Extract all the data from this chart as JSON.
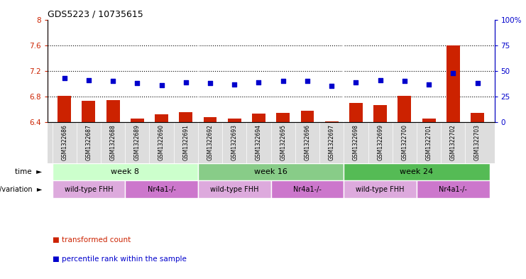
{
  "title": "GDS5223 / 10735615",
  "samples": [
    "GSM1322686",
    "GSM1322687",
    "GSM1322688",
    "GSM1322689",
    "GSM1322690",
    "GSM1322691",
    "GSM1322692",
    "GSM1322693",
    "GSM1322694",
    "GSM1322695",
    "GSM1322696",
    "GSM1322697",
    "GSM1322698",
    "GSM1322699",
    "GSM1322700",
    "GSM1322701",
    "GSM1322702",
    "GSM1322703"
  ],
  "red_values": [
    6.81,
    6.73,
    6.74,
    6.46,
    6.52,
    6.56,
    6.48,
    6.46,
    6.53,
    6.55,
    6.58,
    6.41,
    6.7,
    6.67,
    6.81,
    6.46,
    7.6,
    6.55
  ],
  "blue_values": [
    43,
    41,
    40,
    38,
    36,
    39,
    38,
    37,
    39,
    40,
    40,
    35,
    39,
    41,
    40,
    37,
    48,
    38
  ],
  "ylim_left": [
    6.4,
    8.0
  ],
  "ylim_right": [
    0,
    100
  ],
  "yticks_left": [
    6.4,
    6.8,
    7.2,
    7.6,
    8.0
  ],
  "yticks_right": [
    0,
    25,
    50,
    75,
    100
  ],
  "ytick_labels_left": [
    "6.4",
    "6.8",
    "7.2",
    "7.6",
    "8"
  ],
  "ytick_labels_right": [
    "0",
    "25",
    "50",
    "75",
    "100%"
  ],
  "hlines": [
    6.8,
    7.2,
    7.6
  ],
  "time_groups": [
    {
      "label": "week 8",
      "start": 0,
      "end": 6,
      "color": "#ccffcc"
    },
    {
      "label": "week 16",
      "start": 6,
      "end": 12,
      "color": "#88cc88"
    },
    {
      "label": "week 24",
      "start": 12,
      "end": 18,
      "color": "#55bb55"
    }
  ],
  "genotype_groups": [
    {
      "label": "wild-type FHH",
      "start": 0,
      "end": 3,
      "color": "#ddaadd"
    },
    {
      "label": "Nr4a1-/-",
      "start": 3,
      "end": 6,
      "color": "#cc77cc"
    },
    {
      "label": "wild-type FHH",
      "start": 6,
      "end": 9,
      "color": "#ddaadd"
    },
    {
      "label": "Nr4a1-/-",
      "start": 9,
      "end": 12,
      "color": "#cc77cc"
    },
    {
      "label": "wild-type FHH",
      "start": 12,
      "end": 15,
      "color": "#ddaadd"
    },
    {
      "label": "Nr4a1-/-",
      "start": 15,
      "end": 18,
      "color": "#cc77cc"
    }
  ],
  "bar_color": "#cc2200",
  "dot_color": "#0000cc",
  "bg_color": "#ffffff",
  "plot_bg": "#ffffff",
  "legend_red": "transformed count",
  "legend_blue": "percentile rank within the sample",
  "time_label": "time",
  "geno_label": "genotype/variation"
}
